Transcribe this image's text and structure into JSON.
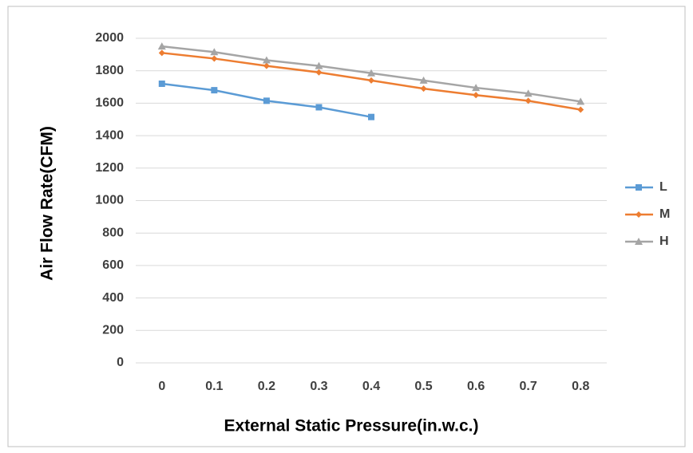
{
  "chart_data": {
    "type": "line",
    "x_label": "External Static Pressure(in.w.c.)",
    "y_label": "Air Flow Rate(CFM)",
    "categories": [
      "0",
      "0.1",
      "0.2",
      "0.3",
      "0.4",
      "0.5",
      "0.6",
      "0.7",
      "0.8"
    ],
    "series": [
      {
        "name": "L",
        "color": "#5b9bd5",
        "marker": "square",
        "values": [
          1720,
          1680,
          1615,
          1575,
          1515,
          null,
          null,
          null,
          null
        ]
      },
      {
        "name": "M",
        "color": "#ed7d31",
        "marker": "diamond",
        "values": [
          1910,
          1875,
          1830,
          1790,
          1740,
          1690,
          1650,
          1615,
          1560
        ]
      },
      {
        "name": "H",
        "color": "#a5a5a5",
        "marker": "triangle",
        "values": [
          1950,
          1915,
          1865,
          1830,
          1785,
          1740,
          1695,
          1660,
          1610
        ]
      }
    ],
    "ylim": [
      0,
      2000
    ],
    "yticks": [
      0,
      200,
      400,
      600,
      800,
      1000,
      1200,
      1400,
      1600,
      1800,
      2000
    ],
    "grid": true,
    "legend": "right"
  }
}
